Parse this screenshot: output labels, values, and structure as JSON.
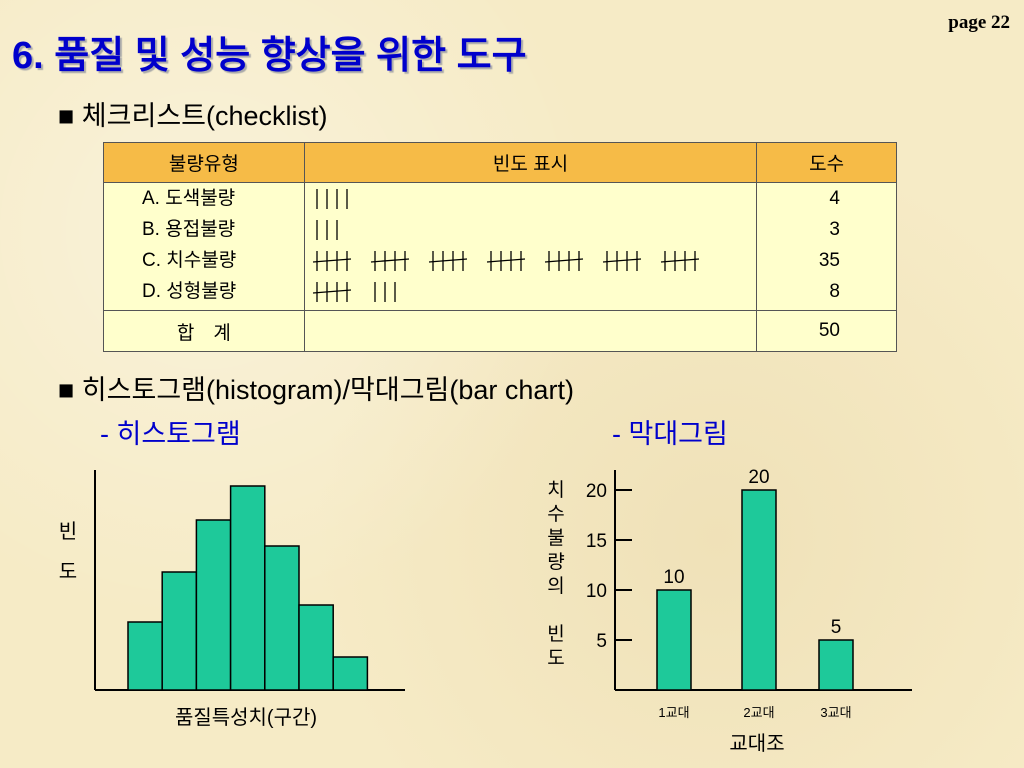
{
  "page_label": "page 22",
  "title": "6. 품질 및 성능 향상을 위한 도구",
  "section1": "■ 체크리스트(checklist)",
  "table": {
    "header": [
      "불량유형",
      "빈도 표시",
      "도수"
    ],
    "rows": [
      {
        "type": "A. 도색불량",
        "count": 4
      },
      {
        "type": "B. 용접불량",
        "count": 3
      },
      {
        "type": "C. 치수불량",
        "count": 35
      },
      {
        "type": "D. 성형불량",
        "count": 8
      }
    ],
    "total": {
      "label": "합　계",
      "count": 50
    }
  },
  "section2": "■ 히스토그램(histogram)/막대그림(bar chart)",
  "charts": [
    {
      "type": "histogram",
      "subtitle": "- 히스토그램",
      "ylabel": "빈도",
      "xlabel": "품질특성치(구간)",
      "values": [
        6.8,
        11.8,
        17,
        20.4,
        14.4,
        8.5,
        3.3
      ],
      "ylim": [
        0,
        22
      ],
      "color": "#1ec99a"
    },
    {
      "type": "bar",
      "subtitle": "- 막대그림",
      "ylabel": "치수불량의 빈도",
      "xlabel": "교대조",
      "categories": [
        "1교대",
        "2교대",
        "3교대"
      ],
      "values": [
        10,
        20,
        5
      ],
      "ylim": [
        0,
        22
      ],
      "yticks": [
        5,
        10,
        15,
        20
      ],
      "color": "#1ec99a"
    }
  ]
}
